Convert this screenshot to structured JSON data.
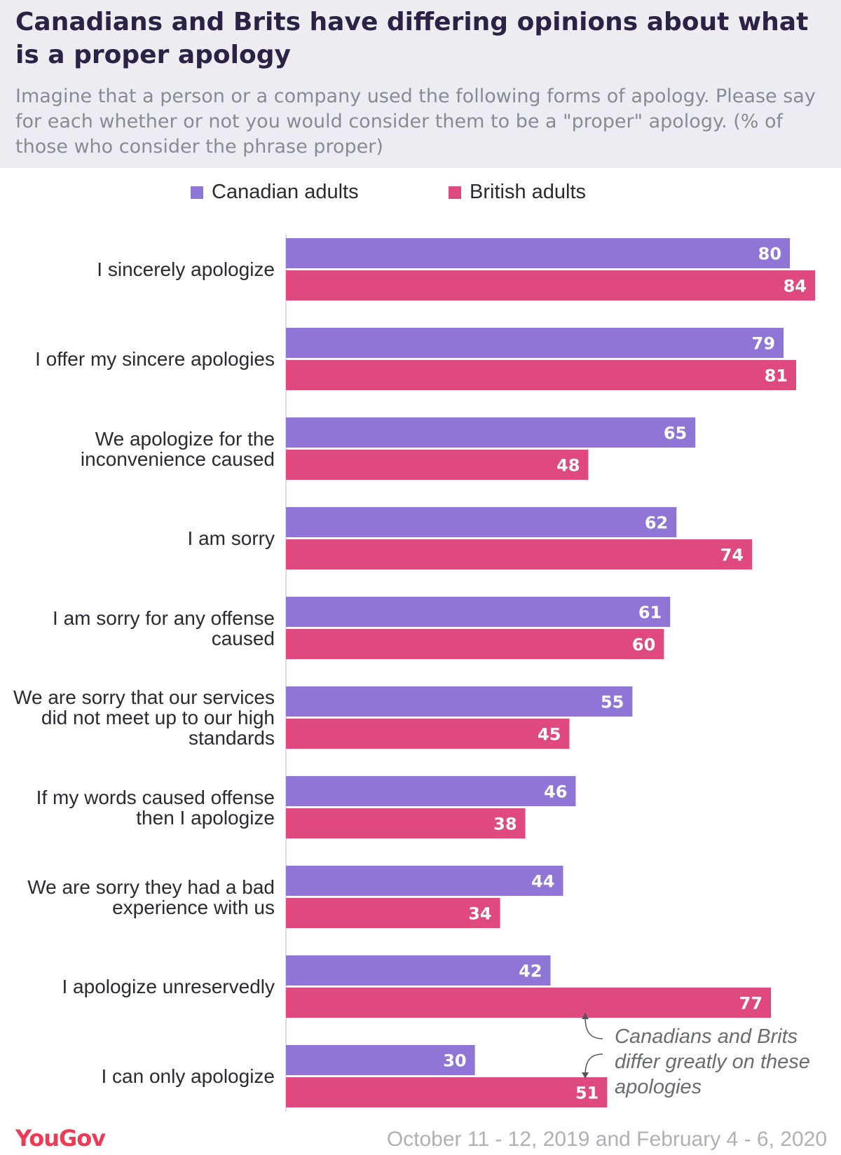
{
  "title": "Canadians and Brits have differing opinions about what is a proper apology",
  "subtitle": "Imagine that a person or a company used the following forms of apology. Please say for each whether or not you would consider them to be a \"proper\" apology. (% of those who consider the phrase proper)",
  "legend": {
    "canadian": "Canadian adults",
    "british": "British adults"
  },
  "colors": {
    "canadian": "#8f76d6",
    "british": "#e0497d",
    "header_bg": "#ececf1",
    "brand": "#ee3b55"
  },
  "annotation": "Canadians and Brits differ greatly on these apologies",
  "footer": {
    "brand": "YouGov",
    "date": "October 11 - 12, 2019 and February 4 - 6, 2020"
  },
  "chart_data": {
    "type": "bar",
    "orientation": "horizontal",
    "categories": [
      "I sincerely apologize",
      "I offer my sincere apologies",
      "We apologize for the inconvenience caused",
      "I am sorry",
      "I am sorry for any offense caused",
      "We are sorry that our services did not meet up to our high standards",
      "If my words caused offense then I apologize",
      "We are sorry they had a bad experience with us",
      "I apologize unreservedly",
      "I can only apologize"
    ],
    "series": [
      {
        "name": "Canadian adults",
        "values": [
          80,
          79,
          65,
          62,
          61,
          55,
          46,
          44,
          42,
          30
        ]
      },
      {
        "name": "British adults",
        "values": [
          84,
          81,
          48,
          74,
          60,
          45,
          38,
          34,
          77,
          51
        ]
      }
    ],
    "xlim": [
      0,
      84
    ],
    "grid": false,
    "legend_position": "top"
  }
}
